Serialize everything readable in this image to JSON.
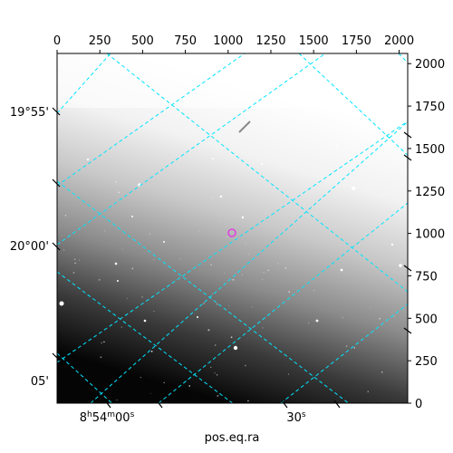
{
  "figure": {
    "x_label": "pos.eq.ra",
    "top_ticks": [
      "0",
      "250",
      "500",
      "750",
      "1000",
      "1250",
      "1500",
      "1750",
      "2000"
    ],
    "right_ticks": [
      "0",
      "250",
      "500",
      "750",
      "1000",
      "1250",
      "1500",
      "1750",
      "2000"
    ],
    "dec_ticks": [
      "19°55'",
      "20°00'",
      "05'"
    ],
    "ra_ticks": [
      {
        "h": "8",
        "m": "54",
        "s": "00",
        "text": "8h54m00s"
      },
      {
        "s": "30",
        "text": "30s"
      }
    ],
    "grid_color": "#00e5ff",
    "marker_color": "#e040e0"
  }
}
